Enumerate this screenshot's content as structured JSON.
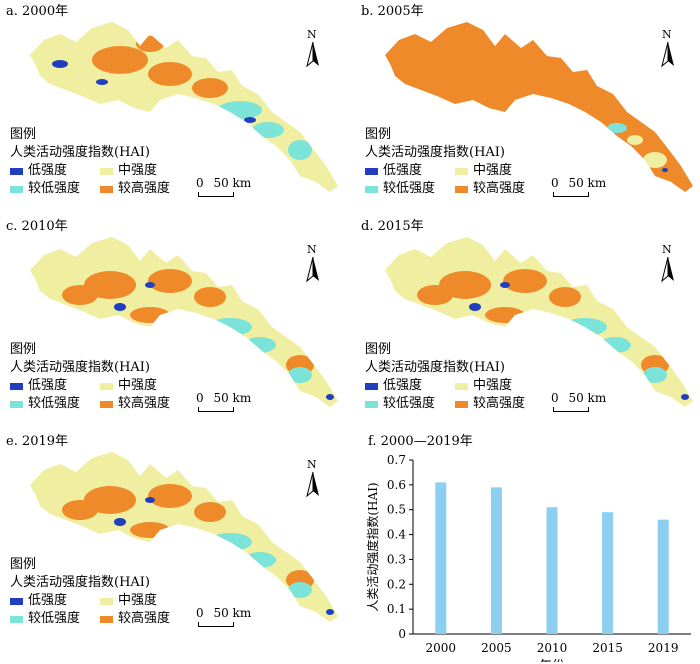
{
  "panels": [
    {
      "label": "a. 2000年",
      "scheme": "a"
    },
    {
      "label": "b. 2005年",
      "scheme": "b"
    },
    {
      "label": "c. 2010年",
      "scheme": "c"
    },
    {
      "label": "d. 2015年",
      "scheme": "c"
    },
    {
      "label": "e. 2019年",
      "scheme": "c"
    }
  ],
  "north_label": "N",
  "legend": {
    "title": "图例",
    "subtitle": "人类活动强度指数(HAI)",
    "items": [
      {
        "label": "低强度",
        "color": "#1f3fbf"
      },
      {
        "label": "中强度",
        "color": "#f0eea0"
      },
      {
        "label": "较低强度",
        "color": "#7ce3d8"
      },
      {
        "label": "较高强度",
        "color": "#ef8a2a"
      }
    ]
  },
  "scalebar": {
    "zero": "0",
    "label": "50 km"
  },
  "chart_title": "f. 2000—2019年",
  "chart_data": {
    "type": "bar",
    "categories": [
      "2000",
      "2005",
      "2010",
      "2015",
      "2019"
    ],
    "values": [
      0.61,
      0.59,
      0.51,
      0.49,
      0.46
    ],
    "xlabel": "年份",
    "ylabel": "人类活动强度指数(HAI)",
    "ylim": [
      0,
      0.7
    ],
    "yticks": [
      "0",
      "0.1",
      "0.2",
      "0.3",
      "0.4",
      "0.5",
      "0.6",
      "0.7"
    ],
    "bar_color": "#8ccff0",
    "grid": false
  }
}
